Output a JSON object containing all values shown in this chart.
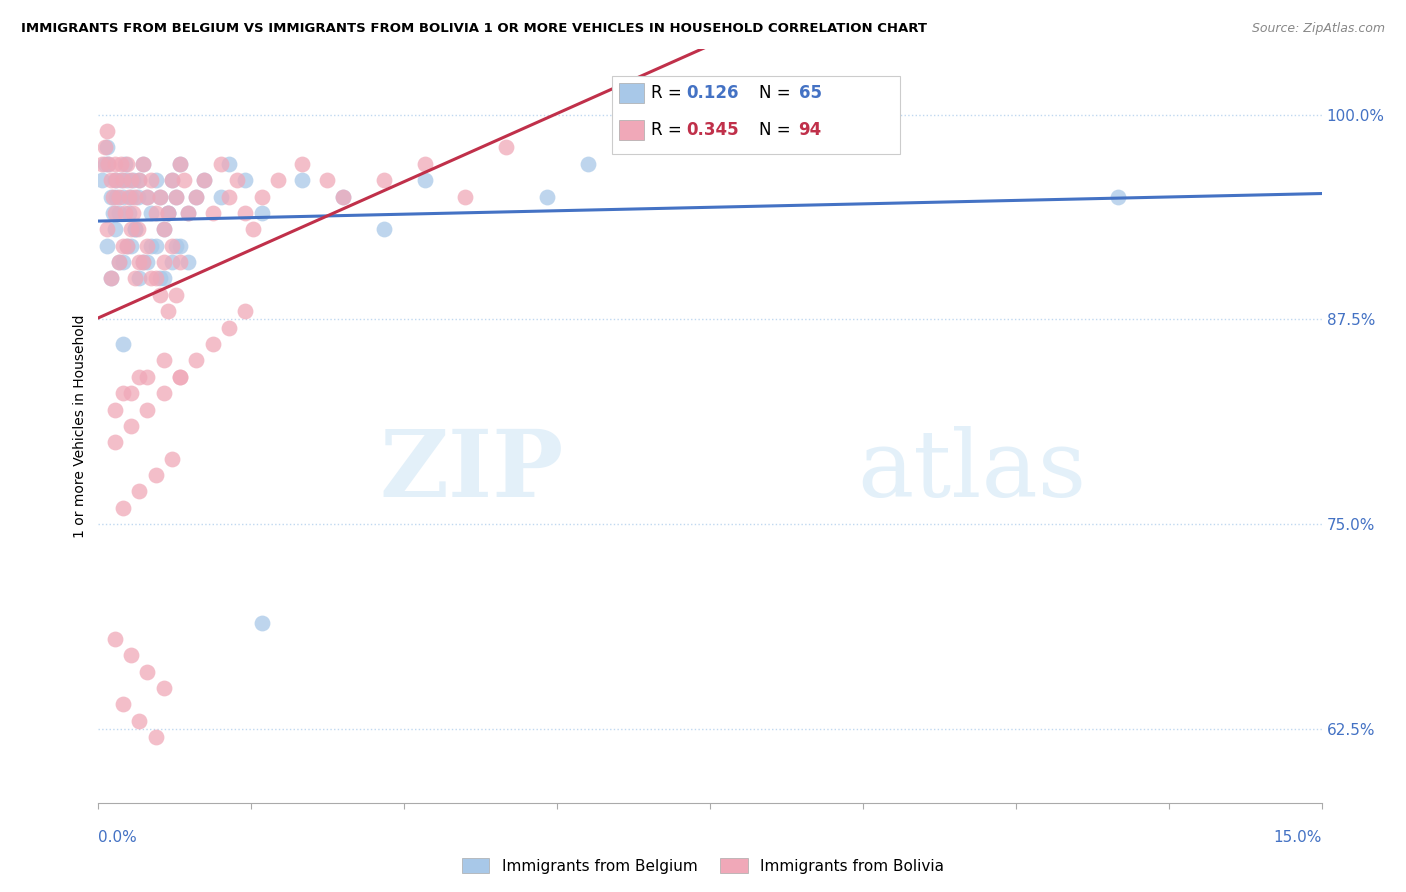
{
  "title": "IMMIGRANTS FROM BELGIUM VS IMMIGRANTS FROM BOLIVIA 1 OR MORE VEHICLES IN HOUSEHOLD CORRELATION CHART",
  "source": "Source: ZipAtlas.com",
  "ylabel": "1 or more Vehicles in Household",
  "legend_belgium": "Immigrants from Belgium",
  "legend_bolivia": "Immigrants from Bolivia",
  "R_belgium": 0.126,
  "N_belgium": 65,
  "R_bolivia": 0.345,
  "N_bolivia": 94,
  "belgium_color": "#a8c8e8",
  "bolivia_color": "#f0a8b8",
  "belgium_line_color": "#4472c4",
  "bolivia_line_color": "#c0304a",
  "xlim": [
    0.0,
    15.0
  ],
  "ylim": [
    58.0,
    104.0
  ],
  "belgium_x": [
    0.05,
    0.08,
    0.1,
    0.12,
    0.15,
    0.18,
    0.2,
    0.22,
    0.25,
    0.28,
    0.3,
    0.32,
    0.35,
    0.38,
    0.4,
    0.42,
    0.45,
    0.48,
    0.5,
    0.55,
    0.6,
    0.65,
    0.7,
    0.75,
    0.8,
    0.85,
    0.9,
    0.95,
    1.0,
    1.1,
    1.2,
    1.3,
    1.5,
    1.6,
    1.8,
    2.0,
    2.5,
    3.0,
    3.5,
    4.0,
    5.5,
    6.0,
    0.1,
    0.2,
    0.3,
    0.4,
    0.5,
    0.6,
    0.7,
    0.8,
    0.9,
    1.0,
    1.1,
    0.15,
    0.25,
    0.35,
    0.45,
    0.55,
    0.65,
    0.75,
    0.85,
    0.95,
    0.3,
    12.5,
    2.0
  ],
  "belgium_y": [
    96,
    97,
    98,
    97,
    95,
    94,
    96,
    95,
    94,
    96,
    95,
    97,
    96,
    94,
    95,
    96,
    93,
    95,
    96,
    97,
    95,
    94,
    96,
    95,
    93,
    94,
    96,
    95,
    97,
    94,
    95,
    96,
    95,
    97,
    96,
    94,
    96,
    95,
    93,
    96,
    95,
    97,
    92,
    93,
    91,
    92,
    90,
    91,
    92,
    90,
    91,
    92,
    91,
    90,
    91,
    92,
    93,
    91,
    92,
    90,
    94,
    92,
    86,
    95,
    69
  ],
  "bolivia_x": [
    0.05,
    0.08,
    0.1,
    0.12,
    0.15,
    0.18,
    0.2,
    0.22,
    0.25,
    0.28,
    0.3,
    0.32,
    0.35,
    0.38,
    0.4,
    0.42,
    0.45,
    0.48,
    0.5,
    0.55,
    0.6,
    0.65,
    0.7,
    0.75,
    0.8,
    0.85,
    0.9,
    0.95,
    1.0,
    1.05,
    1.1,
    1.2,
    1.3,
    1.4,
    1.5,
    1.6,
    1.7,
    1.8,
    1.9,
    2.0,
    2.2,
    2.5,
    3.0,
    3.5,
    4.0,
    5.0,
    0.1,
    0.2,
    0.3,
    0.4,
    0.5,
    0.6,
    0.7,
    0.8,
    0.9,
    1.0,
    0.15,
    0.25,
    0.35,
    0.45,
    0.55,
    0.65,
    0.75,
    0.85,
    0.95,
    0.3,
    0.5,
    2.8,
    0.2,
    0.4,
    0.6,
    0.8,
    1.0,
    0.2,
    0.4,
    0.6,
    0.8,
    1.0,
    0.3,
    0.5,
    0.7,
    0.9,
    4.5,
    0.2,
    0.4,
    0.6,
    0.8,
    0.3,
    0.5,
    0.7,
    1.2,
    1.4,
    1.6,
    1.8
  ],
  "bolivia_y": [
    97,
    98,
    99,
    97,
    96,
    95,
    97,
    96,
    95,
    97,
    96,
    94,
    97,
    95,
    96,
    94,
    95,
    93,
    96,
    97,
    95,
    96,
    94,
    95,
    93,
    94,
    96,
    95,
    97,
    96,
    94,
    95,
    96,
    94,
    97,
    95,
    96,
    94,
    93,
    95,
    96,
    97,
    95,
    96,
    97,
    98,
    93,
    94,
    92,
    93,
    91,
    92,
    90,
    91,
    92,
    91,
    90,
    91,
    92,
    90,
    91,
    90,
    89,
    88,
    89,
    83,
    84,
    96,
    82,
    83,
    84,
    85,
    84,
    80,
    81,
    82,
    83,
    84,
    76,
    77,
    78,
    79,
    95,
    68,
    67,
    66,
    65,
    64,
    63,
    62,
    85,
    86,
    87,
    88
  ]
}
